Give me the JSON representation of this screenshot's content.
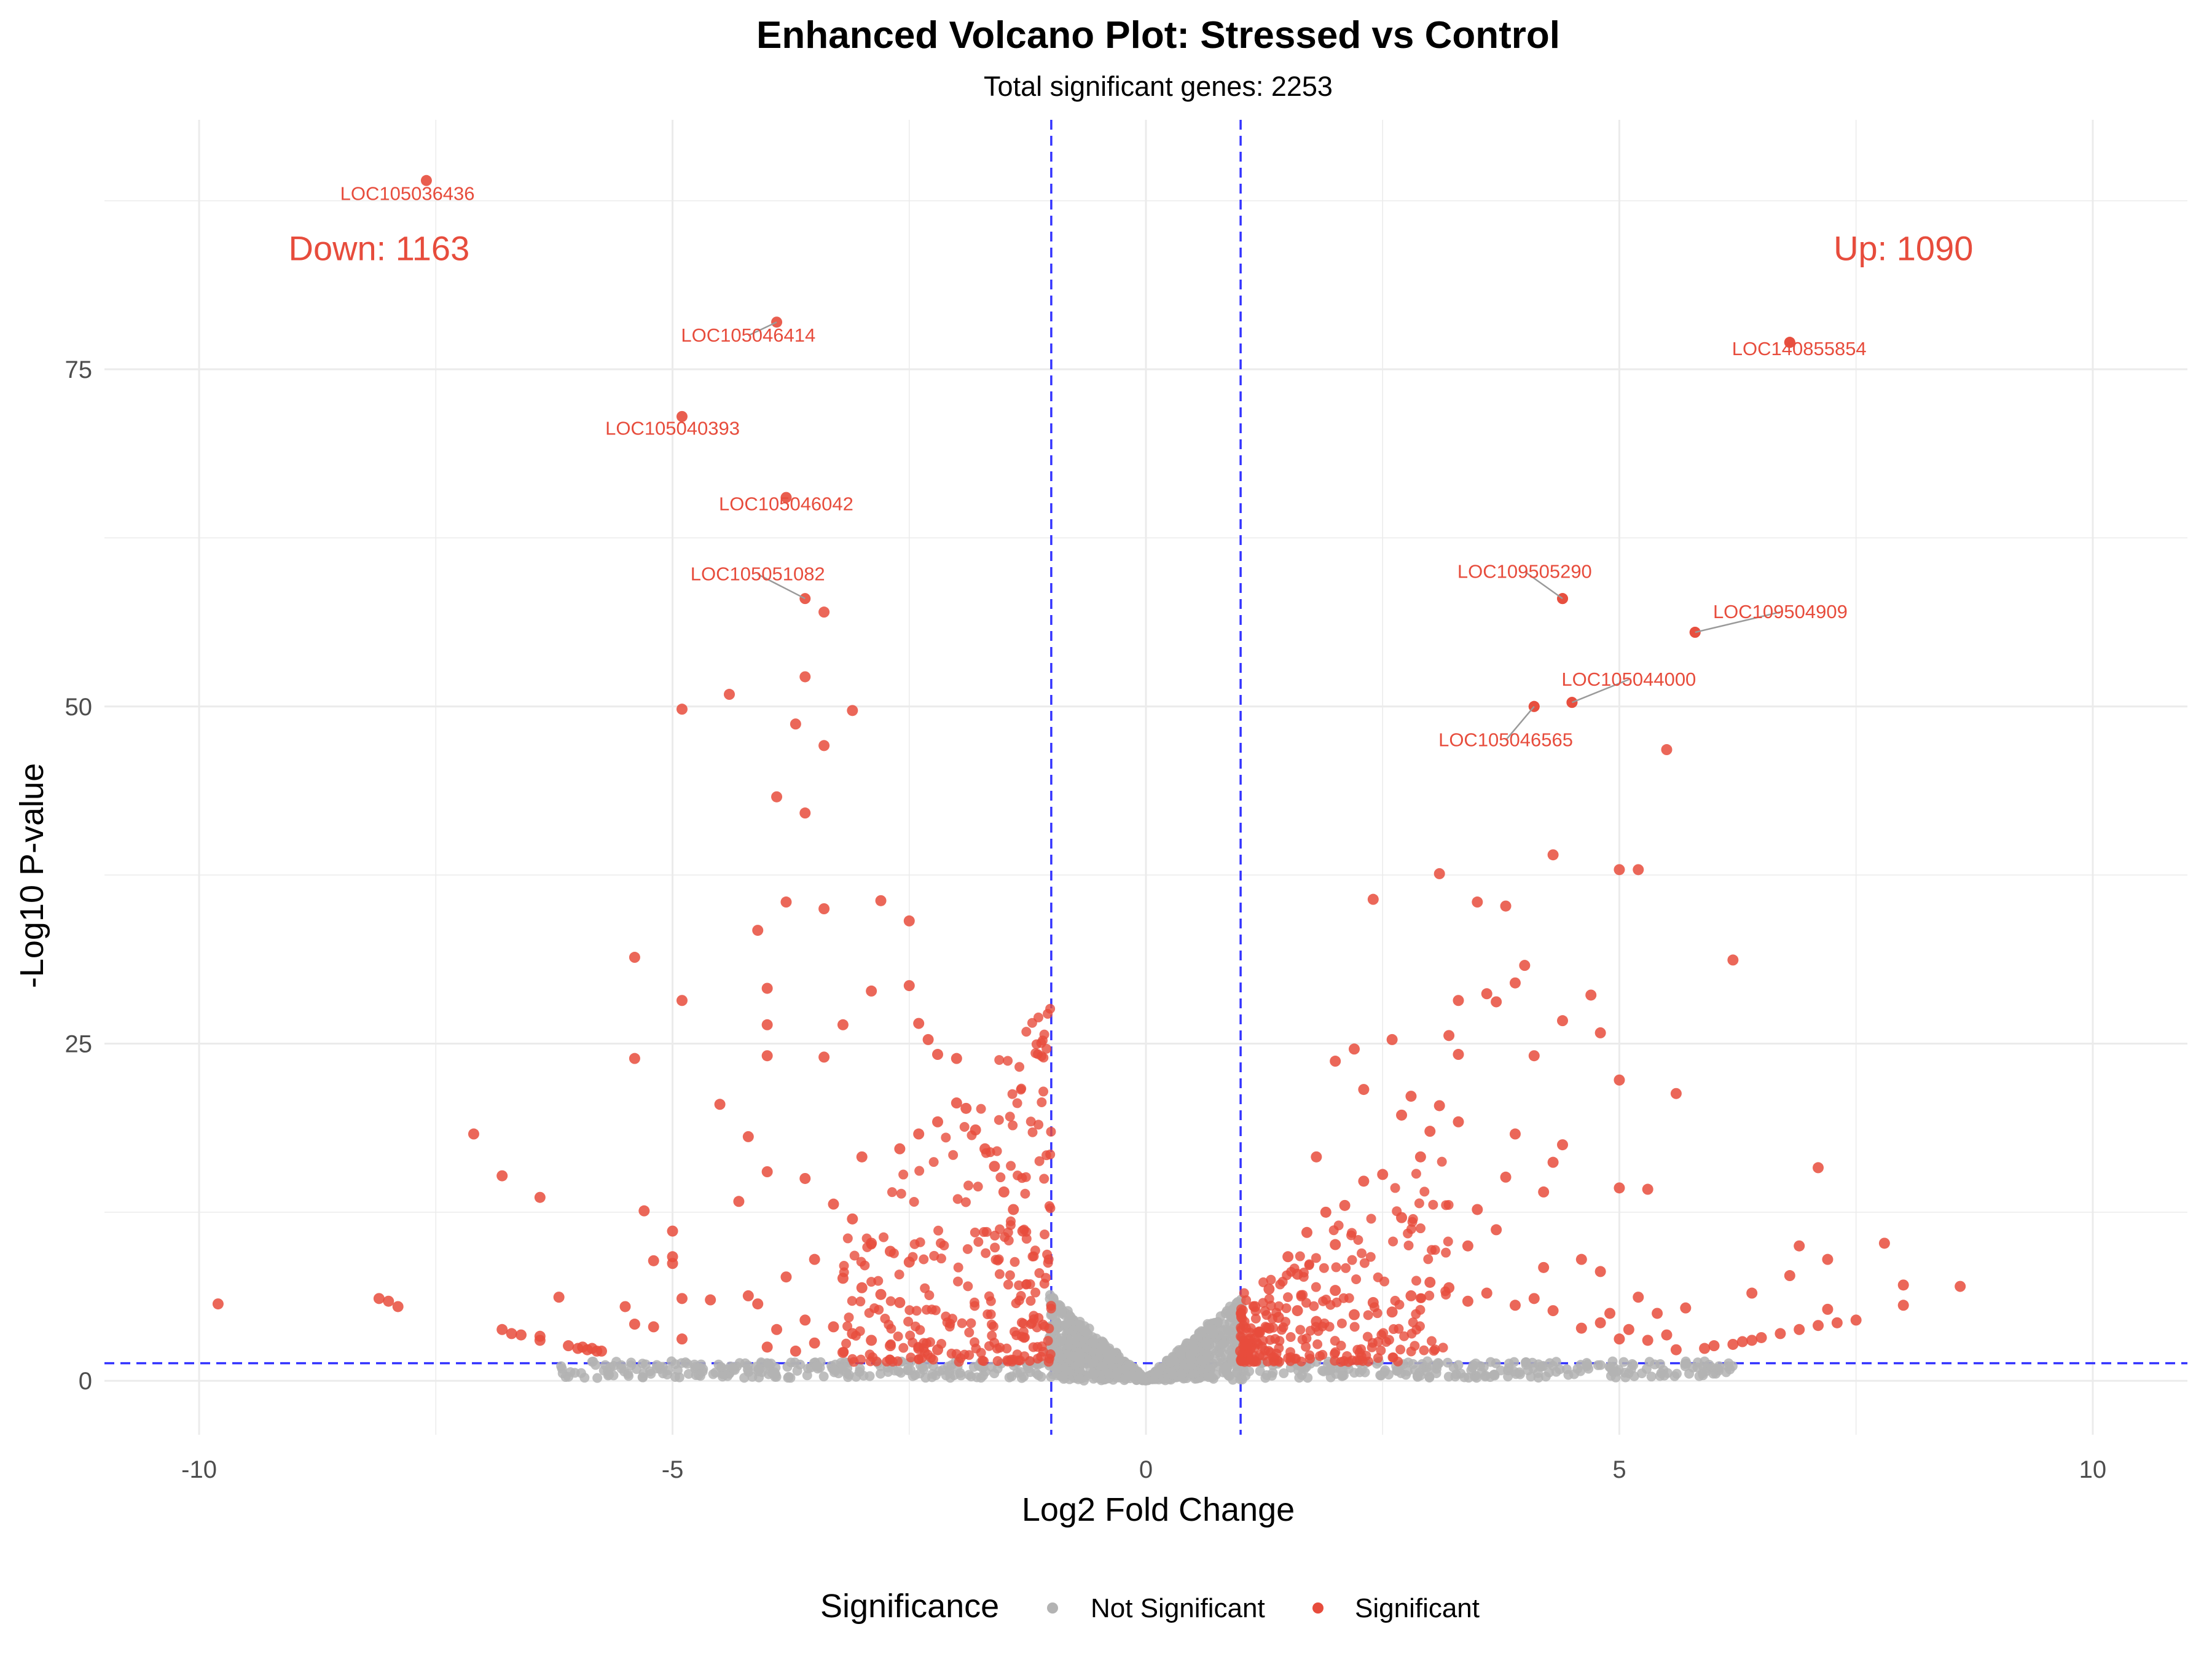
{
  "chart_data": {
    "type": "scatter",
    "title": "Enhanced Volcano Plot: Stressed vs Control",
    "subtitle": "Total significant genes: 2253",
    "xlabel": "Log2 Fold Change",
    "ylabel": "-Log10 P-value",
    "xlim": [
      -11.0,
      11.0
    ],
    "ylim": [
      -4.0,
      93.5
    ],
    "x_ticks": [
      -10,
      -5,
      0,
      5,
      10
    ],
    "y_ticks": [
      0,
      25,
      50,
      75
    ],
    "grid": true,
    "thresholds": {
      "log2fc": [
        -1,
        1
      ],
      "neg_log10_p": 1.3
    },
    "colors": {
      "significant": "#e74c3c",
      "not_significant": "#b3b3b3",
      "threshold_line": "#3333ff"
    },
    "counts": {
      "down_label": "Down: 1163",
      "up_label": "Up: 1090",
      "down_pos": [
        -8.1,
        84
      ],
      "up_pos": [
        8.0,
        84
      ]
    },
    "legend": {
      "title": "Significance",
      "position": "bottom",
      "items": [
        {
          "name": "Not Significant",
          "color": "#b3b3b3"
        },
        {
          "name": "Significant",
          "color": "#e74c3c"
        }
      ]
    },
    "labeled_genes": [
      {
        "gene": "LOC105036436",
        "x": -7.6,
        "y": 89.0,
        "lx": -7.8,
        "ly": 88.0
      },
      {
        "gene": "LOC105046414",
        "x": -3.9,
        "y": 78.5,
        "lx": -4.2,
        "ly": 77.5
      },
      {
        "gene": "LOC105040393",
        "x": -4.9,
        "y": 71.5,
        "lx": -5.0,
        "ly": 70.6
      },
      {
        "gene": "LOC105046042",
        "x": -3.8,
        "y": 65.5,
        "lx": -3.8,
        "ly": 65.0
      },
      {
        "gene": "LOC105051082",
        "x": -3.6,
        "y": 58.0,
        "lx": -4.1,
        "ly": 59.8
      },
      {
        "gene": "LOC140855854",
        "x": 6.8,
        "y": 77.0,
        "lx": 6.9,
        "ly": 76.5
      },
      {
        "gene": "LOC109505290",
        "x": 4.4,
        "y": 58.0,
        "lx": 4.0,
        "ly": 60.0
      },
      {
        "gene": "LOC109504909",
        "x": 5.8,
        "y": 55.5,
        "lx": 6.7,
        "ly": 57.0
      },
      {
        "gene": "LOC105044000",
        "x": 4.5,
        "y": 50.3,
        "lx": 5.1,
        "ly": 52.0
      },
      {
        "gene": "LOC105046565",
        "x": 4.1,
        "y": 50.0,
        "lx": 3.8,
        "ly": 47.5
      }
    ],
    "significant_points": [
      [
        -9.8,
        5.7
      ],
      [
        -8.1,
        6.1
      ],
      [
        -8.0,
        5.9
      ],
      [
        -7.9,
        5.5
      ],
      [
        -7.1,
        18.3
      ],
      [
        -6.8,
        15.2
      ],
      [
        -6.4,
        13.6
      ],
      [
        -6.8,
        3.8
      ],
      [
        -6.7,
        3.5
      ],
      [
        -6.6,
        3.4
      ],
      [
        -6.4,
        3.0
      ],
      [
        -6.4,
        3.3
      ],
      [
        -6.2,
        6.2
      ],
      [
        -6.1,
        2.6
      ],
      [
        -6.0,
        2.4
      ],
      [
        -5.95,
        2.5
      ],
      [
        -5.9,
        2.3
      ],
      [
        -5.85,
        2.4
      ],
      [
        -5.8,
        2.2
      ],
      [
        -5.75,
        2.2
      ],
      [
        -5.4,
        31.4
      ],
      [
        -5.4,
        23.9
      ],
      [
        -5.3,
        12.6
      ],
      [
        -5.2,
        8.9
      ],
      [
        -5.5,
        5.5
      ],
      [
        -5.4,
        4.2
      ],
      [
        -5.2,
        4.0
      ],
      [
        -4.9,
        49.8
      ],
      [
        -4.9,
        28.2
      ],
      [
        -5.0,
        11.1
      ],
      [
        -5.0,
        9.2
      ],
      [
        -5.0,
        8.7
      ],
      [
        -4.9,
        6.1
      ],
      [
        -4.9,
        3.1
      ],
      [
        -4.4,
        50.9
      ],
      [
        -4.3,
        13.3
      ],
      [
        -4.5,
        20.5
      ],
      [
        -4.2,
        18.1
      ],
      [
        -4.2,
        6.3
      ],
      [
        -4.6,
        6.0
      ],
      [
        -4.1,
        5.7
      ],
      [
        -4.1,
        33.4
      ],
      [
        -4.0,
        29.1
      ],
      [
        -4.0,
        26.4
      ],
      [
        -4.0,
        24.1
      ],
      [
        -4.0,
        15.5
      ],
      [
        -3.8,
        35.5
      ],
      [
        -3.7,
        48.7
      ],
      [
        -3.6,
        52.2
      ],
      [
        -3.6,
        42.1
      ],
      [
        -3.9,
        43.3
      ],
      [
        -3.4,
        57.0
      ],
      [
        -3.4,
        47.1
      ],
      [
        -3.4,
        35.0
      ],
      [
        -3.1,
        49.7
      ],
      [
        -2.8,
        35.6
      ],
      [
        -2.5,
        34.1
      ],
      [
        -3.4,
        24.0
      ],
      [
        -3.2,
        26.4
      ],
      [
        -2.9,
        28.9
      ],
      [
        -2.5,
        29.3
      ],
      [
        -2.4,
        26.5
      ],
      [
        -2.3,
        25.3
      ],
      [
        -2.2,
        24.2
      ],
      [
        -2.0,
        23.9
      ],
      [
        -3.0,
        16.6
      ],
      [
        -2.6,
        17.2
      ],
      [
        -2.4,
        18.3
      ],
      [
        -2.2,
        19.2
      ],
      [
        -2.0,
        20.6
      ],
      [
        -1.9,
        20.2
      ],
      [
        -1.8,
        18.6
      ],
      [
        -1.7,
        17.2
      ],
      [
        -1.6,
        15.9
      ],
      [
        -1.5,
        14.0
      ],
      [
        -1.4,
        12.7
      ],
      [
        -1.3,
        11.1
      ],
      [
        -3.6,
        15.0
      ],
      [
        -3.3,
        13.1
      ],
      [
        -3.1,
        12.0
      ],
      [
        -2.9,
        10.2
      ],
      [
        -2.7,
        9.6
      ],
      [
        -2.5,
        8.8
      ],
      [
        -3.5,
        9.0
      ],
      [
        -3.8,
        7.7
      ],
      [
        -3.2,
        7.6
      ],
      [
        -3.0,
        6.9
      ],
      [
        -2.8,
        6.4
      ],
      [
        -2.6,
        5.8
      ],
      [
        -3.6,
        4.5
      ],
      [
        -3.3,
        4.0
      ],
      [
        -3.1,
        3.5
      ],
      [
        -2.9,
        3.0
      ],
      [
        -2.7,
        2.6
      ],
      [
        -2.4,
        2.4
      ],
      [
        -4.0,
        2.5
      ],
      [
        -3.9,
        3.8
      ],
      [
        -3.7,
        2.2
      ],
      [
        -3.5,
        2.8
      ],
      [
        -3.2,
        2.1
      ],
      [
        -2.2,
        2.3
      ]
    ],
    "up_points": [
      [
        6.8,
        77.0
      ],
      [
        5.8,
        55.5
      ],
      [
        4.4,
        58.0
      ],
      [
        4.5,
        50.3
      ],
      [
        4.1,
        50.0
      ],
      [
        5.5,
        46.8
      ],
      [
        4.3,
        39.0
      ],
      [
        5.0,
        37.9
      ],
      [
        5.2,
        37.9
      ],
      [
        3.1,
        37.6
      ],
      [
        2.4,
        35.7
      ],
      [
        3.5,
        35.5
      ],
      [
        3.8,
        35.2
      ],
      [
        6.2,
        31.2
      ],
      [
        4.0,
        30.8
      ],
      [
        3.9,
        29.5
      ],
      [
        3.6,
        28.7
      ],
      [
        4.7,
        28.6
      ],
      [
        3.7,
        28.1
      ],
      [
        3.3,
        28.2
      ],
      [
        4.4,
        26.7
      ],
      [
        2.6,
        25.3
      ],
      [
        3.2,
        25.6
      ],
      [
        4.8,
        25.8
      ],
      [
        3.3,
        24.2
      ],
      [
        4.1,
        24.1
      ],
      [
        2.2,
        24.6
      ],
      [
        2.0,
        23.7
      ],
      [
        5.0,
        22.3
      ],
      [
        5.6,
        21.3
      ],
      [
        2.3,
        21.6
      ],
      [
        2.8,
        21.1
      ],
      [
        3.1,
        20.4
      ],
      [
        2.7,
        19.7
      ],
      [
        3.3,
        19.2
      ],
      [
        3.0,
        18.5
      ],
      [
        3.9,
        18.3
      ],
      [
        4.4,
        17.5
      ],
      [
        4.3,
        16.2
      ],
      [
        5.0,
        14.3
      ],
      [
        7.1,
        15.8
      ],
      [
        7.8,
        10.2
      ],
      [
        8.0,
        7.1
      ],
      [
        8.6,
        7.0
      ],
      [
        8.0,
        5.6
      ],
      [
        7.2,
        9.0
      ],
      [
        6.9,
        10.0
      ],
      [
        6.4,
        6.5
      ],
      [
        6.8,
        7.8
      ],
      [
        7.2,
        5.3
      ],
      [
        7.5,
        4.5
      ],
      [
        7.3,
        4.3
      ],
      [
        7.1,
        4.1
      ],
      [
        6.9,
        3.8
      ],
      [
        6.7,
        3.5
      ],
      [
        6.5,
        3.2
      ],
      [
        6.4,
        3.0
      ],
      [
        6.3,
        2.9
      ],
      [
        6.2,
        2.7
      ],
      [
        6.0,
        2.6
      ],
      [
        5.9,
        2.4
      ],
      [
        5.6,
        2.3
      ],
      [
        5.5,
        3.4
      ],
      [
        5.3,
        3.0
      ],
      [
        5.1,
        3.8
      ],
      [
        5.0,
        3.1
      ],
      [
        4.8,
        4.3
      ],
      [
        4.6,
        3.9
      ],
      [
        4.3,
        5.2
      ],
      [
        4.1,
        6.1
      ],
      [
        3.9,
        5.6
      ],
      [
        3.6,
        6.5
      ],
      [
        3.4,
        5.9
      ],
      [
        3.2,
        6.9
      ],
      [
        3.0,
        7.3
      ],
      [
        2.8,
        6.3
      ],
      [
        2.6,
        5.1
      ],
      [
        2.4,
        5.8
      ],
      [
        2.2,
        4.9
      ],
      [
        2.0,
        6.7
      ],
      [
        1.8,
        4.4
      ],
      [
        1.6,
        5.2
      ],
      [
        1.4,
        4.7
      ],
      [
        1.3,
        3.9
      ],
      [
        1.2,
        3.6
      ],
      [
        1.1,
        3.1
      ],
      [
        1.05,
        2.7
      ],
      [
        1.0,
        2.2
      ],
      [
        1.1,
        2.4
      ],
      [
        1.15,
        5.5
      ],
      [
        1.5,
        9.2
      ],
      [
        1.7,
        11.0
      ],
      [
        1.9,
        12.5
      ],
      [
        2.1,
        13.0
      ],
      [
        2.3,
        14.8
      ],
      [
        1.8,
        16.6
      ],
      [
        2.5,
        15.3
      ],
      [
        2.9,
        16.6
      ],
      [
        2.7,
        12.1
      ],
      [
        3.5,
        12.7
      ],
      [
        3.7,
        11.2
      ],
      [
        3.4,
        10.0
      ],
      [
        4.6,
        9.0
      ],
      [
        4.8,
        8.1
      ],
      [
        4.2,
        8.4
      ],
      [
        5.4,
        5.0
      ],
      [
        5.7,
        5.4
      ],
      [
        5.2,
        6.2
      ],
      [
        4.9,
        5.0
      ],
      [
        5.3,
        14.2
      ],
      [
        4.2,
        14.0
      ],
      [
        3.8,
        15.1
      ],
      [
        2.0,
        10.1
      ],
      [
        1.6,
        7.9
      ],
      [
        1.3,
        6.8
      ]
    ]
  }
}
